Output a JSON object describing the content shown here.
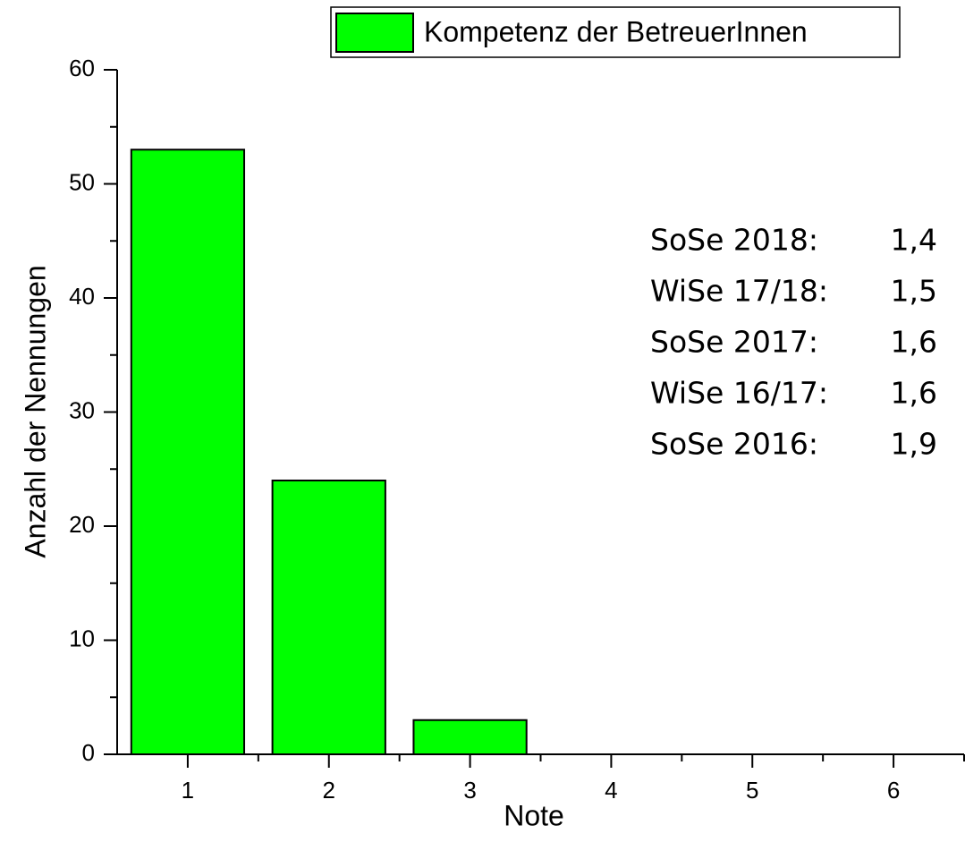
{
  "chart_data": {
    "type": "bar",
    "xlabel": "Note",
    "ylabel": "Anzahl der Nennungen",
    "categories": [
      "1",
      "2",
      "3",
      "4",
      "5",
      "6"
    ],
    "series": [
      {
        "name": "Kompetenz der BetreuerInnen",
        "color": "#00ff00",
        "values": [
          53,
          24,
          3,
          0,
          0,
          0
        ]
      }
    ],
    "ylim": [
      0,
      60
    ],
    "yticks": [
      0,
      10,
      20,
      30,
      40,
      50,
      60
    ],
    "annotations": [
      {
        "label": "SoSe 2018:",
        "value": "1,4",
        "color": "#ff0000"
      },
      {
        "label": "WiSe 17/18:",
        "value": "1,5",
        "color": "#000000"
      },
      {
        "label": "SoSe 2017:",
        "value": "1,6",
        "color": "#ff0000"
      },
      {
        "label": "WiSe 16/17:",
        "value": "1,6",
        "color": "#000000"
      },
      {
        "label": "SoSe 2016:",
        "value": "1,9",
        "color": "#ff0000"
      }
    ]
  }
}
